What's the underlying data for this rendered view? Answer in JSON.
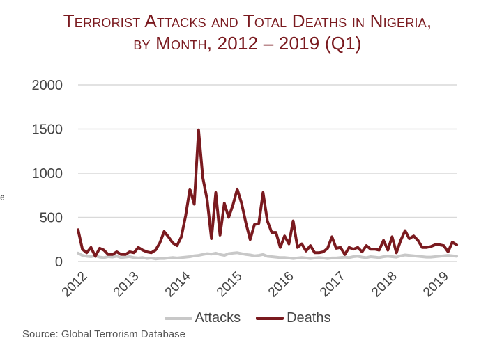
{
  "title_line1": "Terrorist Attacks and Total Deaths in Nigeria,",
  "title_line2": "by Month, 2012 – 2019 (Q1)",
  "source": "Source: Global Terrorism Database",
  "edge_mark": "e",
  "colors": {
    "deaths": "#7a1a1f",
    "attacks": "#c8c8c8",
    "grid": "#d9d9d9",
    "axis_text": "#444444",
    "title": "#7a1a1f"
  },
  "chart_data": {
    "type": "line",
    "title": "Terrorist Attacks and Total Deaths in Nigeria, by Month, 2012 – 2019 (Q1)",
    "xlabel": "",
    "ylabel": "",
    "ylim": [
      0,
      2000
    ],
    "yticks": [
      0,
      500,
      1000,
      1500,
      2000
    ],
    "xticks": [
      "2012",
      "2013",
      "2014",
      "2015",
      "2016",
      "2017",
      "2018",
      "2019"
    ],
    "xlim": [
      "2012-01",
      "2019-03"
    ],
    "grid": true,
    "legend": "bottom",
    "series": [
      {
        "name": "Attacks",
        "color": "#c8c8c8",
        "values": [
          95,
          70,
          60,
          55,
          65,
          50,
          45,
          55,
          50,
          60,
          45,
          50,
          55,
          45,
          40,
          45,
          35,
          40,
          30,
          35,
          35,
          40,
          45,
          40,
          45,
          50,
          55,
          65,
          70,
          80,
          90,
          85,
          95,
          80,
          70,
          90,
          95,
          100,
          90,
          80,
          75,
          65,
          70,
          80,
          60,
          55,
          50,
          45,
          45,
          40,
          35,
          40,
          45,
          40,
          35,
          40,
          45,
          40,
          35,
          40,
          40,
          45,
          50,
          45,
          55,
          60,
          50,
          45,
          55,
          50,
          45,
          55,
          60,
          55,
          50,
          65,
          75,
          70,
          65,
          60,
          55,
          50,
          50,
          55,
          60,
          65,
          70,
          65,
          60
        ]
      },
      {
        "name": "Deaths",
        "color": "#7a1a1f",
        "values": [
          360,
          140,
          100,
          160,
          60,
          150,
          130,
          80,
          80,
          110,
          80,
          80,
          110,
          100,
          160,
          130,
          110,
          100,
          130,
          210,
          340,
          280,
          210,
          180,
          280,
          520,
          820,
          650,
          1490,
          950,
          700,
          260,
          780,
          300,
          660,
          500,
          640,
          820,
          660,
          440,
          250,
          420,
          430,
          780,
          460,
          330,
          330,
          160,
          290,
          200,
          460,
          160,
          200,
          120,
          180,
          100,
          100,
          110,
          150,
          280,
          150,
          160,
          80,
          160,
          140,
          160,
          110,
          180,
          140,
          140,
          130,
          240,
          130,
          280,
          100,
          240,
          350,
          260,
          290,
          240,
          160,
          160,
          170,
          190,
          190,
          180,
          110,
          220,
          190
        ]
      }
    ]
  }
}
